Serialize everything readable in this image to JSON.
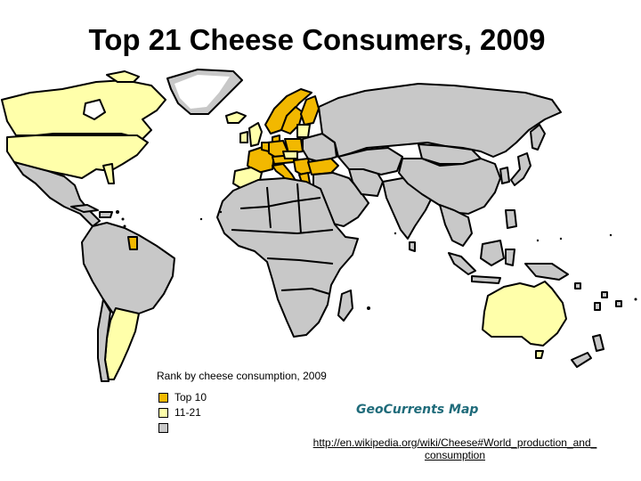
{
  "title": "Top 21 Cheese Consumers, 2009",
  "colors": {
    "top10": "#F2B800",
    "rank11_21": "#FFFFAA",
    "other": "#C8C8C8",
    "ocean": "#FFFFFF",
    "border": "#000000"
  },
  "legend": {
    "title": "Rank by cheese consumption, 2009",
    "items": [
      {
        "label": "Top 10",
        "color": "#F2B800"
      },
      {
        "label": "11-21",
        "color": "#FFFFAA"
      },
      {
        "label": "",
        "color": "#C8C8C8"
      }
    ]
  },
  "credit": "GeoCurrents Map",
  "source": {
    "line1": "http://en.wikipedia.org/wiki/Cheese#World_production_and_",
    "line2": "consumption"
  }
}
